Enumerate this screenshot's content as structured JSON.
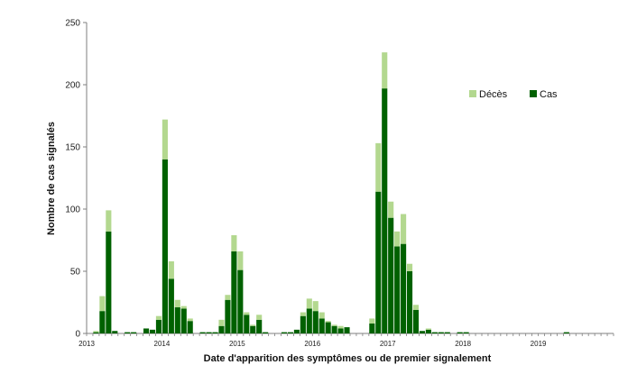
{
  "chart_data": {
    "type": "bar",
    "stacked": true,
    "title": "",
    "xlabel": "Date d'apparition  des symptômes ou de premier signalement",
    "ylabel": "Nombre de cas signalés",
    "ylim": [
      0,
      250
    ],
    "yticks": [
      0,
      50,
      100,
      150,
      200,
      250
    ],
    "xlim": [
      "2013-01",
      "2019-12"
    ],
    "year_ticks": [
      "2013",
      "2014",
      "2015",
      "2016",
      "2017",
      "2018",
      "2019"
    ],
    "grid": false,
    "legend_position": "top-right",
    "colors": {
      "Décès": "#b3d88f",
      "Cas": "#006100"
    },
    "x": [
      "2013-01",
      "2013-02",
      "2013-03",
      "2013-04",
      "2013-05",
      "2013-06",
      "2013-07",
      "2013-08",
      "2013-09",
      "2013-10",
      "2013-11",
      "2013-12",
      "2014-01",
      "2014-02",
      "2014-03",
      "2014-04",
      "2014-05",
      "2014-06",
      "2014-07",
      "2014-08",
      "2014-09",
      "2014-10",
      "2014-11",
      "2014-12",
      "2015-01",
      "2015-02",
      "2015-03",
      "2015-04",
      "2015-05",
      "2015-06",
      "2015-07",
      "2015-08",
      "2015-09",
      "2015-10",
      "2015-11",
      "2015-12",
      "2016-01",
      "2016-02",
      "2016-03",
      "2016-04",
      "2016-05",
      "2016-06",
      "2016-07",
      "2016-08",
      "2016-09",
      "2016-10",
      "2016-11",
      "2016-12",
      "2017-01",
      "2017-02",
      "2017-03",
      "2017-04",
      "2017-05",
      "2017-06",
      "2017-07",
      "2017-08",
      "2017-09",
      "2017-10",
      "2017-11",
      "2017-12",
      "2018-01",
      "2018-02",
      "2018-03",
      "2018-04",
      "2018-05",
      "2018-06",
      "2018-07",
      "2018-08",
      "2018-09",
      "2018-10",
      "2018-11",
      "2018-12",
      "2019-01",
      "2019-02",
      "2019-03",
      "2019-04",
      "2019-05",
      "2019-06",
      "2019-07",
      "2019-08",
      "2019-09",
      "2019-10",
      "2019-11",
      "2019-12"
    ],
    "series": [
      {
        "name": "Cas",
        "values": [
          0,
          1,
          18,
          82,
          2,
          0,
          1,
          1,
          0,
          4,
          3,
          11,
          140,
          44,
          21,
          20,
          10,
          0,
          1,
          1,
          1,
          6,
          27,
          66,
          51,
          15,
          6,
          11,
          1,
          0,
          0,
          1,
          1,
          3,
          14,
          20,
          18,
          12,
          9,
          6,
          4,
          5,
          0,
          0,
          0,
          8,
          114,
          197,
          93,
          70,
          72,
          50,
          19,
          2,
          3,
          1,
          1,
          1,
          0,
          1,
          1,
          0,
          0,
          0,
          0,
          0,
          0,
          0,
          0,
          0,
          0,
          0,
          0,
          0,
          0,
          0,
          1,
          0,
          0,
          0,
          0,
          0,
          0,
          0
        ]
      },
      {
        "name": "Décès",
        "values": [
          0,
          1,
          12,
          17,
          0,
          0,
          0,
          0,
          0,
          0,
          0,
          3,
          32,
          14,
          6,
          2,
          2,
          0,
          0,
          0,
          0,
          5,
          4,
          13,
          15,
          2,
          1,
          4,
          0,
          0,
          0,
          0,
          0,
          0,
          3,
          8,
          8,
          5,
          1,
          1,
          2,
          0,
          0,
          0,
          0,
          4,
          39,
          29,
          13,
          12,
          24,
          6,
          4,
          0,
          1,
          0,
          0,
          0,
          0,
          0,
          0,
          0,
          0,
          0,
          0,
          0,
          0,
          0,
          0,
          0,
          0,
          0,
          0,
          0,
          0,
          0,
          0,
          0,
          0,
          0,
          0,
          0,
          0,
          0
        ]
      }
    ]
  }
}
